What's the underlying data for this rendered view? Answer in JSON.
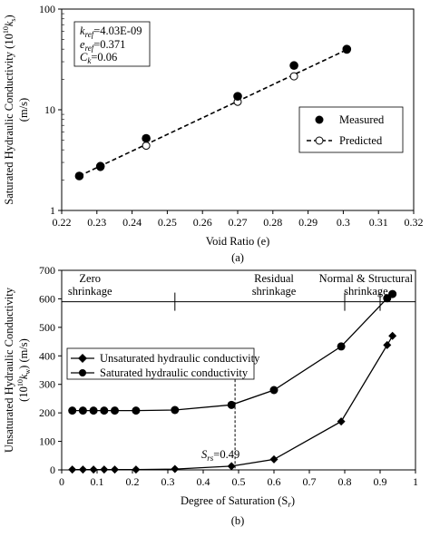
{
  "chart_data": [
    {
      "type": "scatter",
      "caption": "(a)",
      "xlabel": "Void Ratio (e)",
      "ylabel_line1": "Saturated Hydraulic Conductivity (10",
      "ylabel_sup": "10",
      "ylabel_k": "k",
      "ylabel_ks": "s",
      "ylabel_end": ")",
      "ylabel_line2": "(m/s)",
      "ylabel_full": "Saturated Hydraulic Conductivity (10^10 ks) (m/s)",
      "xlim": [
        0.22,
        0.32
      ],
      "ylim": [
        1,
        100
      ],
      "yscale": "log",
      "xticks": [
        "0.22",
        "0.23",
        "0.24",
        "0.25",
        "0.26",
        "0.27",
        "0.28",
        "0.29",
        "0.3",
        "0.31",
        "0.32"
      ],
      "yticks": [
        "1",
        "10",
        "100"
      ],
      "series": [
        {
          "name": "Measured",
          "marker": "filled-circle",
          "x": [
            0.225,
            0.231,
            0.244,
            0.27,
            0.286,
            0.301
          ],
          "y": [
            2.2,
            2.75,
            5.2,
            13.6,
            27.5,
            40.0
          ]
        },
        {
          "name": "Predicted",
          "marker": "open-circle-dashed-line",
          "x": [
            0.225,
            0.231,
            0.244,
            0.27,
            0.286,
            0.301
          ],
          "y": [
            2.2,
            2.7,
            4.4,
            12.0,
            21.5,
            39.5
          ]
        }
      ],
      "annotation": [
        {
          "label": "k",
          "sub": "ref",
          "value": "=4.03E-09"
        },
        {
          "label": "e",
          "sub": "ref",
          "value": "=0.371"
        },
        {
          "label": "C",
          "sub": "k",
          "value": "=0.06"
        }
      ],
      "legend_position": "bottom-right",
      "grid": false
    },
    {
      "type": "line",
      "caption": "(b)",
      "xlabel": "Degree of Saturation (S",
      "xlabel_sub": "r",
      "xlabel_end": ")",
      "xlabel_full": "Degree of Saturation (Sr)",
      "ylabel_line1": "Unsaturated Hydraulic Conductivity",
      "ylabel_line2_a": "(10",
      "ylabel_line2_sup": "10",
      "ylabel_line2_k": "k",
      "ylabel_line2_sub": "w",
      "ylabel_line2_end": ") (m/s)",
      "ylabel_full": "Unsaturated Hydraulic Conductivity (10^10 kw) (m/s)",
      "xlim": [
        0,
        1
      ],
      "ylim": [
        0,
        700
      ],
      "xticks": [
        "0",
        "0.1",
        "0.2",
        "0.3",
        "0.4",
        "0.5",
        "0.6",
        "0.7",
        "0.8",
        "0.9",
        "1"
      ],
      "yticks": [
        "0",
        "100",
        "200",
        "300",
        "400",
        "500",
        "600",
        "700"
      ],
      "series": [
        {
          "name": "Unsaturated hydraulic conductivity",
          "marker": "diamond",
          "x": [
            0.03,
            0.06,
            0.09,
            0.12,
            0.15,
            0.21,
            0.32,
            0.48,
            0.6,
            0.79,
            0.92,
            0.935
          ],
          "y": [
            1,
            1,
            1,
            1,
            1,
            1,
            3,
            13,
            37,
            170,
            438,
            470
          ]
        },
        {
          "name": "Saturated hydraulic conductivity",
          "marker": "filled-circle",
          "x": [
            0.03,
            0.06,
            0.09,
            0.12,
            0.15,
            0.21,
            0.32,
            0.48,
            0.6,
            0.79,
            0.92,
            0.935
          ],
          "y": [
            208,
            208,
            208,
            208,
            208,
            208,
            210,
            228,
            280,
            433,
            602,
            617
          ]
        }
      ],
      "zones": [
        {
          "line1": "Zero",
          "line2": "shrinkage",
          "x_center": 0.08
        },
        {
          "line1": "Residual",
          "line2": "shrinkage",
          "x_center": 0.6
        },
        {
          "line1": "Normal & Structural",
          "line2": "shrinkage",
          "x_center": 0.86
        }
      ],
      "zone_line_y": 590,
      "zone_dividers_x": [
        0.32,
        0.8,
        0.9
      ],
      "srs_line_x": 0.49,
      "srs_label": {
        "symbol": "S",
        "sub": "rs",
        "value": "=0.49"
      },
      "legend_position": "middle-left",
      "grid": false
    }
  ]
}
